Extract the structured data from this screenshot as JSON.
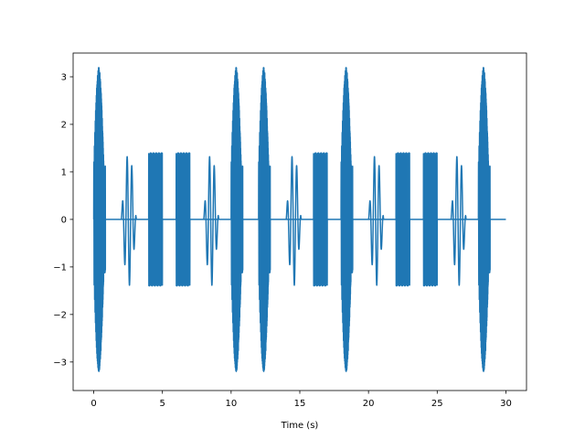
{
  "chart_data": {
    "type": "line",
    "title": "",
    "xlabel": "Time (s)",
    "ylabel": "",
    "xlim": [
      -1.5,
      31.5
    ],
    "ylim": [
      -3.6,
      3.5
    ],
    "x_ticks": [
      0,
      5,
      10,
      15,
      20,
      25,
      30
    ],
    "x_tick_labels": [
      "0",
      "5",
      "10",
      "15",
      "20",
      "25",
      "30"
    ],
    "y_ticks": [
      -3,
      -2,
      -1,
      0,
      1,
      2,
      3
    ],
    "y_tick_labels": [
      "−3",
      "−2",
      "−1",
      "0",
      "1",
      "2",
      "3"
    ],
    "grid": false,
    "line_color": "#1f77b4",
    "baseline": {
      "x": [
        0,
        30
      ],
      "y": [
        0,
        0
      ]
    },
    "series": [
      {
        "bursts": [
          {
            "start": 0.0,
            "end": 0.85,
            "amplitude": 3.2,
            "style": "chirp"
          },
          {
            "start": 2.0,
            "end": 3.1,
            "amplitude": 1.4,
            "style": "slow"
          },
          {
            "start": 4.0,
            "end": 5.0,
            "amplitude": 1.4,
            "style": "dense"
          },
          {
            "start": 6.0,
            "end": 7.0,
            "amplitude": 1.4,
            "style": "dense"
          },
          {
            "start": 8.0,
            "end": 9.1,
            "amplitude": 1.4,
            "style": "slow"
          },
          {
            "start": 10.0,
            "end": 10.85,
            "amplitude": 3.2,
            "style": "chirp"
          },
          {
            "start": 12.0,
            "end": 12.85,
            "amplitude": 3.2,
            "style": "chirp"
          },
          {
            "start": 14.0,
            "end": 15.1,
            "amplitude": 1.4,
            "style": "slow"
          },
          {
            "start": 16.0,
            "end": 17.0,
            "amplitude": 1.4,
            "style": "dense"
          },
          {
            "start": 18.0,
            "end": 18.85,
            "amplitude": 3.2,
            "style": "chirp"
          },
          {
            "start": 20.0,
            "end": 21.1,
            "amplitude": 1.4,
            "style": "slow"
          },
          {
            "start": 22.0,
            "end": 23.0,
            "amplitude": 1.4,
            "style": "dense"
          },
          {
            "start": 24.0,
            "end": 25.0,
            "amplitude": 1.4,
            "style": "dense"
          },
          {
            "start": 26.0,
            "end": 27.1,
            "amplitude": 1.4,
            "style": "slow"
          },
          {
            "start": 28.0,
            "end": 28.85,
            "amplitude": 3.2,
            "style": "chirp"
          }
        ]
      }
    ]
  }
}
